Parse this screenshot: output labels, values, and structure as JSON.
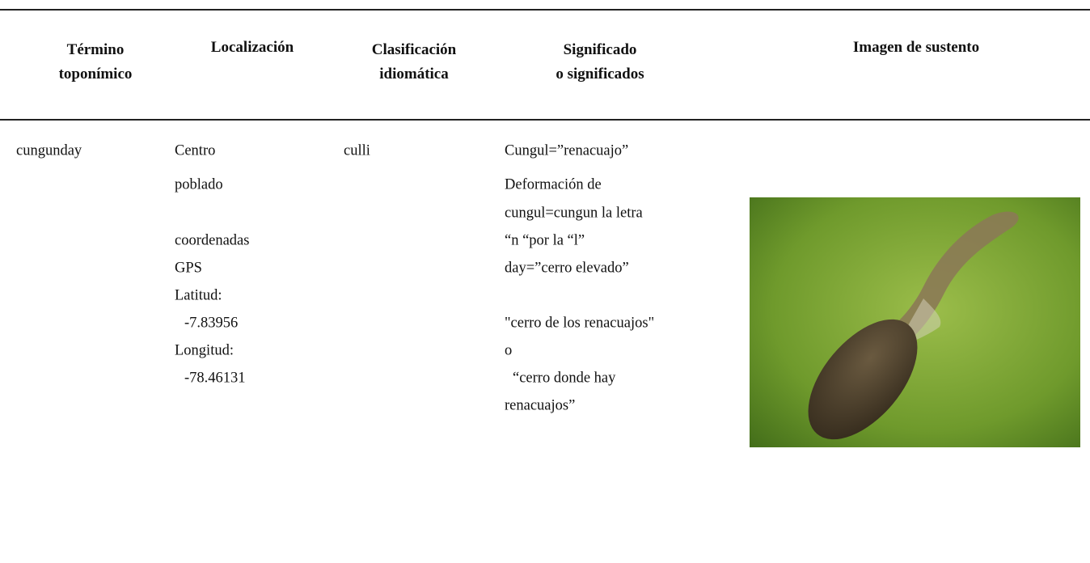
{
  "table": {
    "headers": [
      [
        "Término",
        "toponímico"
      ],
      [
        "Localización"
      ],
      [
        "Clasificación",
        "idiomática"
      ],
      [
        "Significado",
        "o significados"
      ],
      [
        "Imagen de sustento"
      ]
    ],
    "rows": [
      [
        [
          "cungunday"
        ],
        [
          "Centro",
          "poblado",
          "coordenadas",
          "GPS",
          "Latitud:",
          "-7.83956",
          "Longitud:",
          "-78.46131"
        ],
        [
          "culli"
        ],
        [
          "Cungul=”renacuajo”",
          "Deformación de",
          "cungul=cungun la letra",
          "“n “por la “l”",
          "day=”cerro elevado”",
          "\"cerro de los renacuajos\"",
          "o",
          "“cerro donde hay",
          "renacuajos”"
        ]
      ]
    ]
  }
}
